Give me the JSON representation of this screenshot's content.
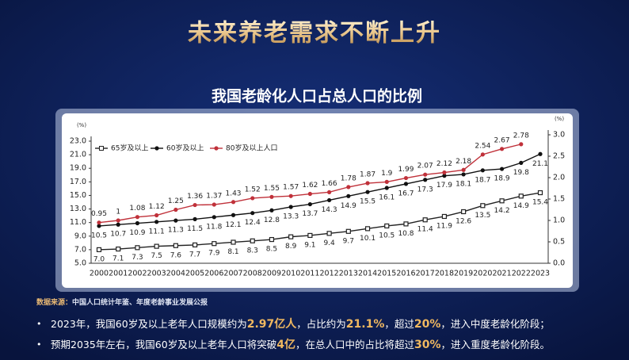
{
  "title": "未来养老需求不断上升",
  "chart_data": {
    "type": "line",
    "title": "我国老龄化人口占总人口的比例",
    "y_label": "(%)",
    "y2_label": "(%)",
    "categories": [
      "2000",
      "2001",
      "2002",
      "2003",
      "2004",
      "2005",
      "2006",
      "2007",
      "2008",
      "2009",
      "2010",
      "2011",
      "2012",
      "2013",
      "2014",
      "2015",
      "2016",
      "2017",
      "2018",
      "2019",
      "2020",
      "2021",
      "2022",
      "2023"
    ],
    "series": [
      {
        "name": "65岁及以上",
        "color": "#222222",
        "marker": "square",
        "values": [
          7.0,
          7.1,
          7.3,
          7.5,
          7.6,
          7.7,
          7.9,
          8.1,
          8.3,
          8.5,
          8.9,
          9.1,
          9.4,
          9.7,
          10.1,
          10.5,
          10.8,
          11.4,
          11.9,
          12.6,
          13.5,
          14.2,
          14.9,
          15.4
        ],
        "value_labels": [
          "7.0",
          "7.1",
          "7.3",
          "7.5",
          "7.6",
          "7.7",
          "7.9",
          "8.1",
          "8.3",
          "8.5",
          "8.9",
          "9.1",
          "9.4",
          "9.7",
          "10.1",
          "10.5",
          "10.8",
          "11.4",
          "11.9",
          "12.6",
          "13.5",
          "14.2",
          "14.9",
          "15.4"
        ]
      },
      {
        "name": "60岁及以上",
        "color": "#111111",
        "marker": "circle",
        "values": [
          10.5,
          10.7,
          10.9,
          11.1,
          11.3,
          11.5,
          11.8,
          12.1,
          12.4,
          12.8,
          13.3,
          13.7,
          14.3,
          14.9,
          15.5,
          16.1,
          16.7,
          17.3,
          17.9,
          18.1,
          18.7,
          18.9,
          19.8,
          21.1
        ],
        "value_labels": [
          "10.5",
          "10.7",
          "10.9",
          "11.1",
          "11.3",
          "11.5",
          "11.8",
          "12.1",
          "12.4",
          "12.8",
          "13.3",
          "13.7",
          "14.3",
          "14.9",
          "15.5",
          "16.1",
          "16.7",
          "17.3",
          "17.9",
          "18.1",
          "18.7",
          "18.9",
          "19.8",
          "21.1"
        ]
      },
      {
        "name": "80岁及以上人口",
        "color": "#c0313a",
        "marker": "circle",
        "axis": "y2",
        "values": [
          0.95,
          1,
          1.08,
          1.12,
          1.25,
          1.36,
          1.37,
          1.43,
          1.52,
          1.55,
          1.57,
          1.62,
          1.66,
          1.78,
          1.87,
          1.9,
          1.99,
          2.07,
          2.12,
          2.18,
          2.54,
          2.67,
          2.78,
          null
        ]
      }
    ],
    "ylim": [
      5,
      23
    ],
    "yticks": [
      {
        "value": 5,
        "label": "5.0"
      },
      {
        "value": 7,
        "label": "7.0"
      },
      {
        "value": 9,
        "label": "9.0"
      },
      {
        "value": 11,
        "label": "11.0"
      },
      {
        "value": 13,
        "label": "13.0"
      },
      {
        "value": 15,
        "label": "15.0"
      },
      {
        "value": 17,
        "label": "17.0"
      },
      {
        "value": 19,
        "label": "19.0"
      },
      {
        "value": 21,
        "label": "21.0"
      },
      {
        "value": 23,
        "label": "23.0"
      }
    ],
    "y2lim": [
      0,
      3
    ],
    "y2ticks": [
      {
        "value": 0,
        "label": "0.0"
      },
      0.5,
      {
        "value": 1,
        "label": "1.0"
      },
      1.5,
      {
        "value": 2,
        "label": "2.0"
      },
      2.5,
      {
        "value": 3,
        "label": "3.0"
      }
    ],
    "legend": "upper left"
  },
  "source_label": "数据来源：",
  "source": "中国人口统计年鉴、年度老龄事业发展公报",
  "bullets": [
    [
      "2023年，我国60岁及以上老年人口规模约为",
      "2.97亿人",
      "，占比约为",
      "21.1%",
      "，超过",
      "20%",
      "，进入中度老龄化阶段；"
    ],
    [
      "预期2035年左右，我国60岁及以上老年人口将突破",
      "4亿",
      "，在总人口中的占比将超过",
      "30%",
      "，进入重度老龄化阶段。"
    ]
  ]
}
